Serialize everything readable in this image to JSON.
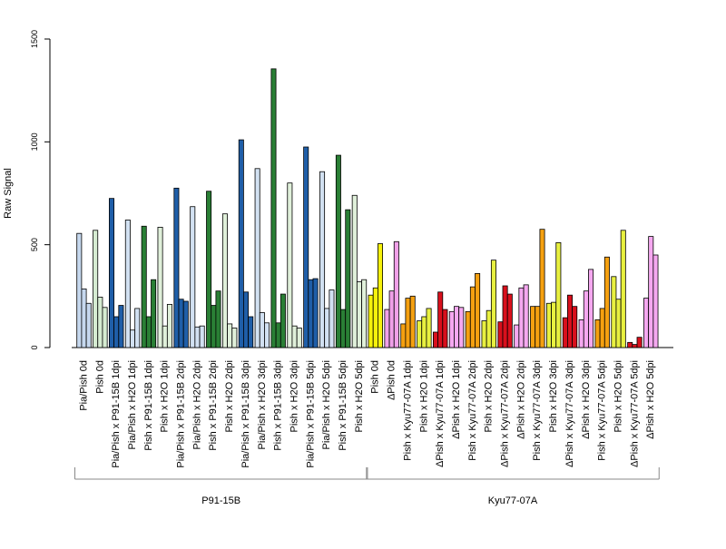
{
  "chart_data": {
    "type": "bar",
    "ylabel": "Raw Signal",
    "ylim": [
      0,
      1500
    ],
    "yticks": [
      0,
      500,
      1000,
      1500
    ],
    "grid": false,
    "legend": "none",
    "categories": [
      "Pia/Pish 0d",
      "Pish 0d",
      "Pia/Pish x P91-15B 1dpi",
      "Pia/Pish x H2O 1dpi",
      "Pish x P91-15B 1dpi",
      "Pish x H2O 1dpi",
      "Pia/Pish x P91-15B 2dpi",
      "Pia/Pish x H2O 2dpi",
      "Pish x P91-15B 2dpi",
      "Pish x H2O 2dpi",
      "Pia/Pish x P91-15B 3dpi",
      "Pia/Pish x H2O 3dpi",
      "Pish x P91-15B 3dpi",
      "Pish x H2O 3dpi",
      "Pia/Pish x P91-15B 5dpi",
      "Pia/Pish x H2O 5dpi",
      "Pish x P91-15B 5dpi",
      "Pish x H2O 5dpi",
      "Pish 0d",
      "ΔPish 0d",
      "Pish x Kyu77-07A 1dpi",
      "Pish x H2O 1dpi",
      "ΔPish x Kyu77-07A 1dpi",
      "ΔPish x H2O 1dpi",
      "Pish x Kyu77-07A 2dpi",
      "Pish x H2O 2dpi",
      "ΔPish x Kyu77-07A 2dpi",
      "ΔPish x H2O 2dpi",
      "Pish x Kyu77-07A 3dpi",
      "Pish x H2O 3dpi",
      "ΔPish x Kyu77-07A 3dpi",
      "ΔPish x H2O 3dpi",
      "Pish x Kyu77-07A 5dpi",
      "Pish x H2O 5dpi",
      "ΔPish x Kyu77-07A 5dpi",
      "ΔPish x H2O 5dpi"
    ],
    "colors": [
      "#c6d8ee",
      "#d6ecd2",
      "#1f5ea8",
      "#d2e1f2",
      "#2a7f35",
      "#e0f0da",
      "#f6f20c",
      "#f0a0e8",
      "#f5a010",
      "#e8f040",
      "#d8101c",
      "#f5a8f0"
    ],
    "series": [
      {
        "values": [
          555,
          570,
          725,
          620,
          590,
          585,
          775,
          685,
          760,
          650,
          1010,
          870,
          1355,
          800,
          975,
          855,
          935,
          740,
          255,
          185,
          115,
          130,
          75,
          175,
          175,
          130,
          125,
          110,
          200,
          215,
          145,
          135,
          135,
          345,
          25,
          240
        ],
        "color_index": [
          0,
          1,
          2,
          3,
          4,
          5,
          2,
          3,
          4,
          5,
          2,
          3,
          4,
          5,
          2,
          3,
          4,
          5,
          6,
          7,
          8,
          9,
          10,
          11,
          8,
          9,
          10,
          11,
          8,
          9,
          10,
          11,
          8,
          9,
          10,
          11
        ]
      },
      {
        "values": [
          285,
          245,
          150,
          85,
          150,
          105,
          235,
          100,
          205,
          115,
          270,
          170,
          120,
          105,
          330,
          190,
          185,
          320,
          290,
          275,
          240,
          150,
          270,
          200,
          295,
          180,
          300,
          290,
          200,
          220,
          255,
          275,
          190,
          235,
          15,
          540
        ],
        "color_index": [
          0,
          1,
          2,
          3,
          4,
          5,
          2,
          3,
          4,
          5,
          2,
          3,
          4,
          5,
          2,
          3,
          4,
          5,
          6,
          7,
          8,
          9,
          10,
          11,
          8,
          9,
          10,
          11,
          8,
          9,
          10,
          11,
          8,
          9,
          10,
          11
        ]
      },
      {
        "values": [
          215,
          195,
          205,
          190,
          330,
          210,
          225,
          105,
          275,
          95,
          150,
          120,
          260,
          95,
          335,
          280,
          670,
          330,
          505,
          515,
          250,
          190,
          185,
          195,
          360,
          425,
          260,
          305,
          575,
          510,
          200,
          380,
          440,
          570,
          50,
          450
        ],
        "color_index": [
          0,
          1,
          2,
          3,
          4,
          5,
          2,
          3,
          4,
          5,
          2,
          3,
          4,
          5,
          2,
          3,
          4,
          5,
          6,
          7,
          8,
          9,
          10,
          11,
          8,
          9,
          10,
          11,
          8,
          9,
          10,
          11,
          8,
          9,
          10,
          11
        ]
      }
    ],
    "groups": [
      {
        "label": "P91-15B",
        "start": 0,
        "end": 17
      },
      {
        "label": "Kyu77-07A",
        "start": 18,
        "end": 35
      }
    ]
  }
}
